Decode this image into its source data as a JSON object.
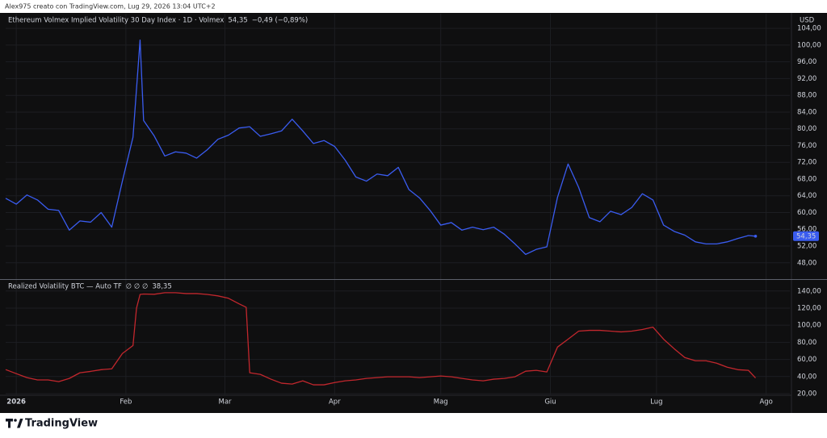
{
  "header": {
    "credit": "Alex975 creato con TradingView.com, Lug 29, 2026 13:04 UTC+2"
  },
  "currency": "USD",
  "footer": {
    "brand": "TradingView"
  },
  "chart_data": [
    {
      "type": "line",
      "x": [
        0,
        3,
        6,
        9,
        12,
        15,
        18,
        21,
        24,
        27,
        30,
        33,
        36,
        38,
        39,
        42,
        45,
        48,
        51,
        54,
        57,
        60,
        63,
        66,
        69,
        72,
        75,
        78,
        81,
        84,
        87,
        90,
        93,
        96,
        99,
        102,
        105,
        108,
        111,
        114,
        117,
        120,
        123,
        126,
        129,
        132,
        135,
        138,
        141,
        144,
        147,
        150,
        153,
        156,
        159,
        162,
        165,
        168,
        171,
        174,
        177,
        180,
        183,
        186,
        189,
        192,
        195,
        198,
        201,
        204,
        207,
        210,
        212
      ],
      "series": [
        {
          "name": "Ethereum Volmex Implied Volatility 30 Day Index · 1D · Volmex",
          "color": "#3a5cf0",
          "legend_value": "54,35",
          "change": "−0,49 (−0,89%)",
          "values": [
            63.4,
            62.0,
            64.2,
            63.0,
            60.8,
            60.5,
            55.8,
            58.0,
            57.7,
            60.0,
            56.5,
            67.5,
            78.0,
            101.2,
            82.0,
            78.3,
            73.5,
            74.5,
            74.2,
            73.0,
            75.0,
            77.5,
            78.5,
            80.2,
            80.5,
            78.2,
            78.8,
            79.5,
            82.3,
            79.5,
            76.5,
            77.2,
            75.8,
            72.5,
            68.5,
            67.5,
            69.2,
            68.8,
            70.8,
            65.5,
            63.5,
            60.5,
            57.0,
            57.6,
            55.8,
            56.5,
            55.9,
            56.5,
            54.8,
            52.5,
            50.0,
            51.2,
            51.8,
            63.6,
            71.6,
            66.0,
            58.8,
            57.8,
            60.3,
            59.5,
            61.2,
            64.5,
            63.0,
            57.0,
            55.5,
            54.6,
            53.0,
            52.5,
            52.5,
            53.0,
            53.8,
            54.5,
            54.35
          ]
        }
      ],
      "xlim": [
        0,
        221.7
      ],
      "ylim": [
        44.1,
        107.5
      ],
      "yticks": [
        {
          "value": 48,
          "label": "48,00"
        },
        {
          "value": 52,
          "label": "52,00"
        },
        {
          "value": 56,
          "label": "56,00"
        },
        {
          "value": 60,
          "label": "60,00"
        },
        {
          "value": 64,
          "label": "64,00"
        },
        {
          "value": 68,
          "label": "68,00"
        },
        {
          "value": 72,
          "label": "72,00"
        },
        {
          "value": 76,
          "label": "76,00"
        },
        {
          "value": 80,
          "label": "80,00"
        },
        {
          "value": 84,
          "label": "84,00"
        },
        {
          "value": 88,
          "label": "88,00"
        },
        {
          "value": 92,
          "label": "92,00"
        },
        {
          "value": 96,
          "label": "96,00"
        },
        {
          "value": 100,
          "label": "100,00"
        },
        {
          "value": 104,
          "label": "104,00"
        }
      ],
      "grid": true
    },
    {
      "type": "line",
      "x": [
        0,
        3,
        6,
        9,
        12,
        15,
        18,
        21,
        24,
        27,
        30,
        33,
        36,
        37,
        38,
        39,
        42,
        45,
        48,
        51,
        54,
        57,
        60,
        63,
        66,
        68,
        69,
        72,
        75,
        78,
        81,
        84,
        87,
        90,
        93,
        96,
        99,
        102,
        105,
        108,
        111,
        114,
        117,
        120,
        123,
        126,
        129,
        132,
        135,
        138,
        141,
        144,
        147,
        150,
        153,
        156,
        159,
        162,
        165,
        168,
        171,
        174,
        177,
        180,
        183,
        186,
        189,
        192,
        195,
        198,
        201,
        204,
        207,
        210,
        212
      ],
      "series": [
        {
          "name": "Realized Volatility BTC — Auto TF",
          "color": "#c2272d",
          "params": "∅ ∅ ∅",
          "legend_value": "38,35",
          "values": [
            48.1,
            43.4,
            38.7,
            36,
            36,
            34,
            37.8,
            44.4,
            46,
            48,
            49,
            66.9,
            76.2,
            120,
            136,
            136.5,
            136.2,
            138,
            138,
            137,
            137,
            136,
            134.3,
            131.5,
            125,
            121,
            44.4,
            42.5,
            36.9,
            32.2,
            31.2,
            35,
            30.3,
            30.3,
            33,
            35,
            36,
            37.8,
            38.7,
            39.7,
            39.7,
            39.7,
            38.7,
            39.7,
            40.6,
            39.7,
            37.8,
            36,
            35,
            36.9,
            37.8,
            39.7,
            46.2,
            47.2,
            45.3,
            74.4,
            83.7,
            93.1,
            94,
            94,
            93.1,
            92.2,
            93.1,
            95,
            97.8,
            83.7,
            72.5,
            62.2,
            58.4,
            58.4,
            55.6,
            50.9,
            48,
            47.2,
            38.35
          ]
        }
      ],
      "xlim": [
        0,
        221.7
      ],
      "ylim": [
        18.1,
        153
      ],
      "yticks": [
        {
          "value": 20,
          "label": "20,00"
        },
        {
          "value": 40,
          "label": "40,00"
        },
        {
          "value": 60,
          "label": "60,00"
        },
        {
          "value": 80,
          "label": "80,00"
        },
        {
          "value": 100,
          "label": "100,00"
        },
        {
          "value": 120,
          "label": "120,00"
        },
        {
          "value": 140,
          "label": "140,00"
        }
      ],
      "xticks": [
        {
          "value": 3,
          "label": "2026"
        },
        {
          "value": 34,
          "label": "Feb"
        },
        {
          "value": 62,
          "label": "Mar"
        },
        {
          "value": 93,
          "label": "Apr"
        },
        {
          "value": 123,
          "label": "Mag"
        },
        {
          "value": 154,
          "label": "Giu"
        },
        {
          "value": 184,
          "label": "Lug"
        },
        {
          "value": 215,
          "label": "Ago"
        }
      ],
      "grid": true
    }
  ]
}
